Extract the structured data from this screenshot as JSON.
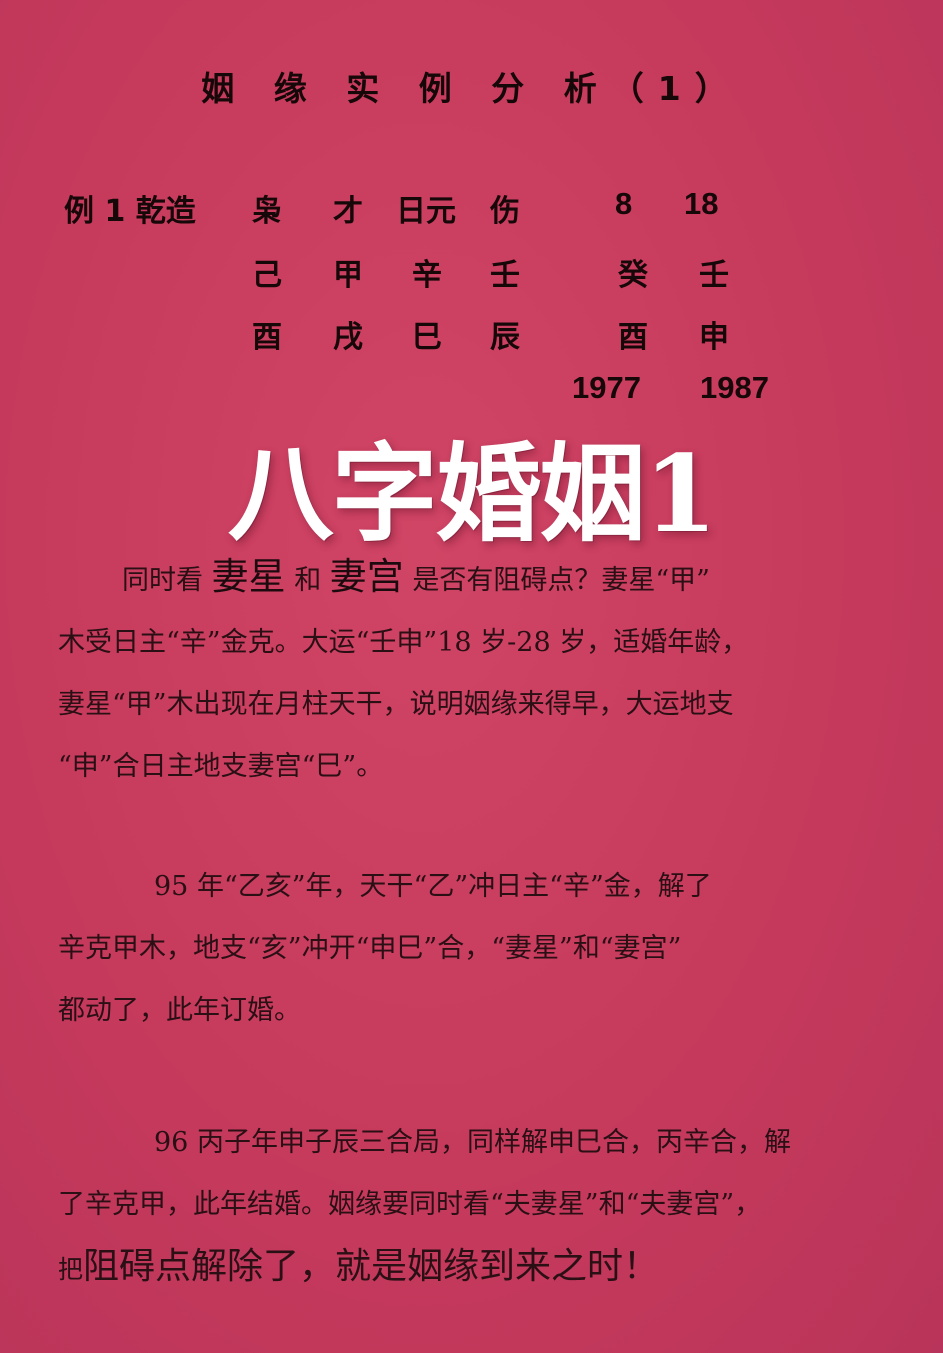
{
  "title": "姻 缘 实 例 分 析（1）",
  "chart": {
    "example_label": "例 1 乾造",
    "row1": [
      "枭",
      "才",
      "日元",
      "伤",
      "8",
      "18"
    ],
    "row2": [
      "己",
      "甲",
      "辛",
      "壬",
      "癸",
      "壬"
    ],
    "row3": [
      "酉",
      "戌",
      "巳",
      "辰",
      "酉",
      "申"
    ],
    "years": [
      "1977",
      "1987"
    ]
  },
  "overlay_title": "八字婚姻1",
  "p1": {
    "l1_a": "同时看",
    "l1_b": "妻星",
    "l1_c": "和",
    "l1_d": "妻宫",
    "l1_e": "是否有阻碍点？妻星“甲”",
    "l2": "木受日主“辛”金克。大运“壬申”18 岁-28 岁，适婚年龄，",
    "l3": "妻星“甲”木出现在月柱天干，说明姻缘来得早，大运地支",
    "l4": "“申”合日主地支妻宫“巳”。"
  },
  "p2": {
    "l1": "95 年“乙亥”年，天干“乙”冲日主“辛”金，解了",
    "l2": "辛克甲木，地支“亥”冲开“申巳”合，“妻星”和“妻宫”",
    "l3": "都动了，此年订婚。"
  },
  "p3": {
    "l1": "96 丙子年申子辰三合局，同样解申巳合，丙辛合，解",
    "l2": "了辛克甲，此年结婚。姻缘要同时看“夫妻星”和“夫妻宫”，",
    "l3_a": "把",
    "l3_b": "阻碍点解除了，就是姻缘到来之时！"
  }
}
